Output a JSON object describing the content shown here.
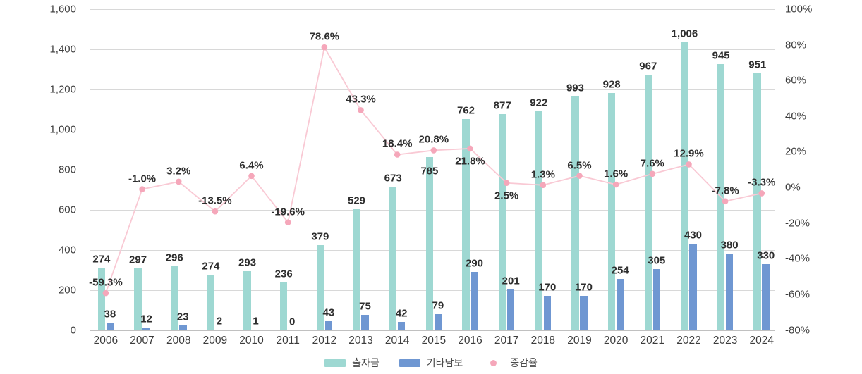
{
  "chart_data": {
    "type": "bar",
    "subtype": "grouped-bars-with-line-dual-axis",
    "title": "",
    "x": [
      "2006",
      "2007",
      "2008",
      "2009",
      "2010",
      "2011",
      "2012",
      "2013",
      "2014",
      "2015",
      "2016",
      "2017",
      "2018",
      "2019",
      "2020",
      "2021",
      "2022",
      "2023",
      "2024"
    ],
    "series": [
      {
        "name": "출자금",
        "type": "bar",
        "axis": "left",
        "color": "#9ed8d2",
        "values": [
          274,
          297,
          296,
          274,
          293,
          236,
          379,
          529,
          673,
          785,
          762,
          877,
          922,
          993,
          928,
          967,
          1006,
          945,
          951
        ],
        "labels": [
          "274",
          "297",
          "296",
          "274",
          "293",
          "236",
          "379",
          "529",
          "673",
          "785",
          "762",
          "877",
          "922",
          "993",
          "928",
          "967",
          "1,006",
          "945",
          "951"
        ]
      },
      {
        "name": "기타담보",
        "type": "bar",
        "axis": "left",
        "color": "#6f97d2",
        "values": [
          38,
          12,
          23,
          2,
          1,
          0,
          43,
          75,
          42,
          79,
          290,
          201,
          170,
          170,
          254,
          305,
          430,
          380,
          330
        ],
        "labels": [
          "38",
          "12",
          "23",
          "2",
          "1",
          "0",
          "43",
          "75",
          "42",
          "79",
          "290",
          "201",
          "170",
          "170",
          "254",
          "305",
          "430",
          "380",
          "330"
        ]
      },
      {
        "name": "증감율",
        "type": "line",
        "axis": "right",
        "line_color": "#f9c9d4",
        "marker_color": "#f5a7ba",
        "values": [
          -59.3,
          -1.0,
          3.2,
          -13.5,
          6.4,
          -19.6,
          78.6,
          43.3,
          18.4,
          20.8,
          21.8,
          2.5,
          1.3,
          6.5,
          1.6,
          7.6,
          12.9,
          -7.8,
          -3.3
        ],
        "labels": [
          "-59.3%",
          "-1.0%",
          "3.2%",
          "-13.5%",
          "6.4%",
          "-19.6%",
          "78.6%",
          "43.3%",
          "18.4%",
          "20.8%",
          "21.8%",
          "2.5%",
          "1.3%",
          "6.5%",
          "1.6%",
          "7.6%",
          "12.9%",
          "-7.8%",
          "-3.3%"
        ]
      }
    ],
    "left_axis": {
      "min": 0,
      "max": 1600,
      "step": 200,
      "tick_labels": [
        "0",
        "200",
        "400",
        "600",
        "800",
        "1,000",
        "1,200",
        "1,400",
        "1,600"
      ]
    },
    "right_axis": {
      "min": -80,
      "max": 100,
      "step": 20,
      "tick_labels": [
        "-80%",
        "-60%",
        "-40%",
        "-20%",
        "0%",
        "20%",
        "40%",
        "60%",
        "80%",
        "100%"
      ]
    },
    "legend": {
      "position": "bottom-center",
      "entries": [
        "출자금",
        "기타담보",
        "증감율"
      ]
    },
    "layout_hints": {
      "grid": "horizontal lines from left axis only",
      "teal_bar_drawn_height": "sum of 출자금 + 기타담보 (stacked total), label shows 출자금 value",
      "line_labels_below_point_at": [
        "2016",
        "2017"
      ],
      "bar_label_at_value_height_at": [
        "2015"
      ]
    }
  },
  "colors": {
    "background": "#ffffff",
    "gridline": "#d8d8d8",
    "zero_line": "#c0c0c0",
    "axis_text": "#3d3d3d",
    "data_label_text": "#2e2e2e"
  }
}
